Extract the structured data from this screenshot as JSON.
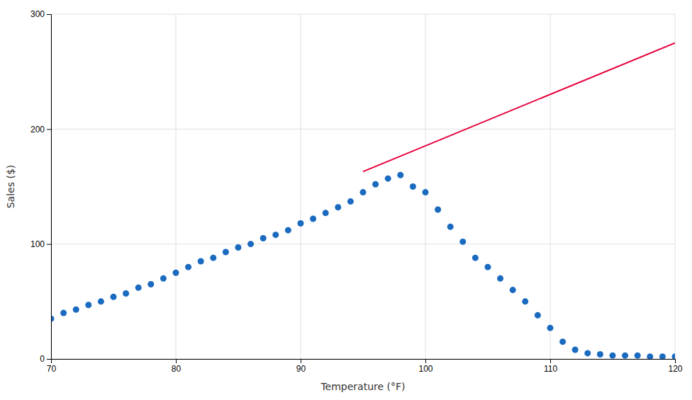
{
  "chart_data": {
    "type": "scatter",
    "xlabel": "Temperature (°F)",
    "ylabel": "Sales ($)",
    "xlim": [
      70,
      120
    ],
    "ylim": [
      0,
      300
    ],
    "xticks": [
      70,
      80,
      90,
      100,
      110,
      120
    ],
    "yticks": [
      0,
      100,
      200,
      300
    ],
    "grid": true,
    "series": [
      {
        "type": "scatter",
        "color": "#1a6abf",
        "x": [
          70,
          71,
          72,
          73,
          74,
          75,
          76,
          77,
          78,
          79,
          80,
          81,
          82,
          83,
          84,
          85,
          86,
          87,
          88,
          89,
          90,
          91,
          92,
          93,
          94,
          95,
          96,
          97,
          98,
          99,
          100,
          101,
          102,
          103,
          104,
          105,
          106,
          107,
          108,
          109,
          110,
          111,
          112,
          113,
          114,
          115,
          116,
          117,
          118,
          119,
          120
        ],
        "values": [
          35,
          40,
          43,
          47,
          50,
          54,
          57,
          62,
          65,
          70,
          75,
          80,
          85,
          88,
          93,
          97,
          100,
          105,
          108,
          112,
          118,
          122,
          127,
          132,
          137,
          145,
          152,
          157,
          160,
          150,
          145,
          130,
          115,
          102,
          88,
          80,
          70,
          60,
          50,
          38,
          27,
          15,
          8,
          5,
          4,
          3,
          3,
          3,
          2,
          2,
          2
        ]
      },
      {
        "type": "line",
        "color": "#e8003a",
        "x": [
          95,
          120
        ],
        "values": [
          163,
          275
        ]
      }
    ]
  }
}
